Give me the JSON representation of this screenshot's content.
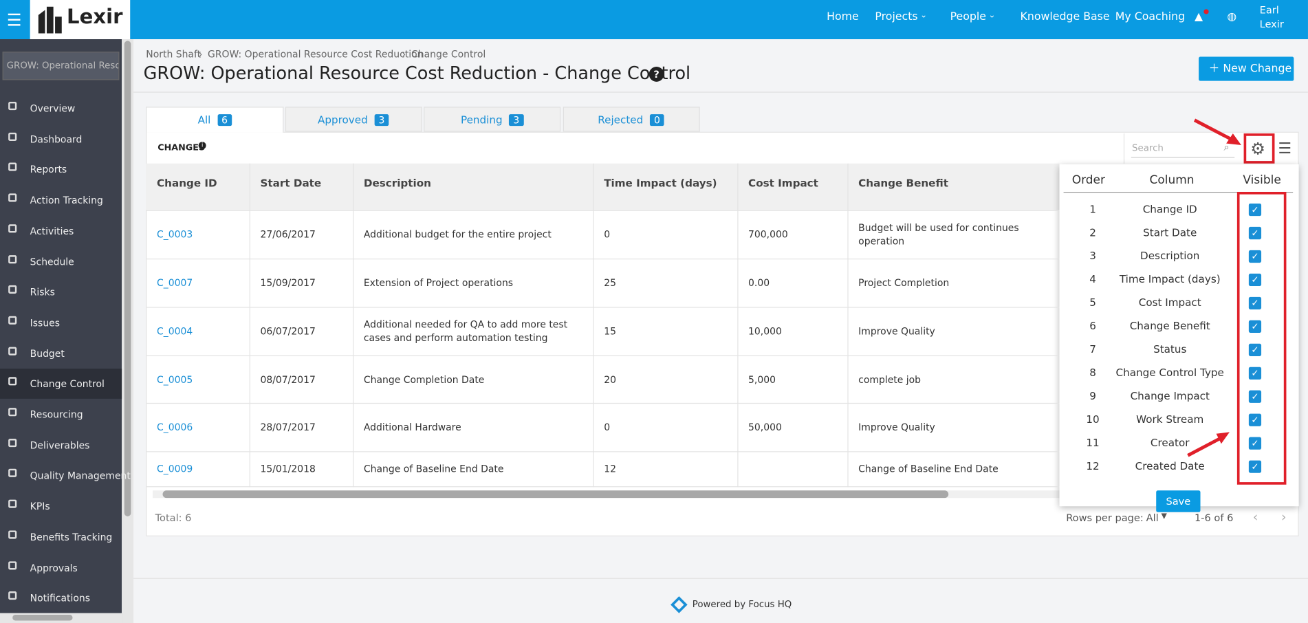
{
  "nav": {
    "brand": "Lexir",
    "links": [
      "Home",
      "Projects",
      "People",
      "Knowledge Base",
      "My Coaching"
    ],
    "user": [
      "Earl",
      "Lexir"
    ]
  },
  "sidebar": {
    "search": "GROW: Operational Resource Cost Reduction",
    "items": [
      "Overview",
      "Dashboard",
      "Reports",
      "Action Tracking",
      "Activities",
      "Schedule",
      "Risks",
      "Issues",
      "Budget",
      "Change Control",
      "Resourcing",
      "Deliverables",
      "Quality Management",
      "KPIs",
      "Benefits Tracking",
      "Approvals",
      "Notifications"
    ]
  },
  "breadcrumbs": [
    "North Shaft",
    "GROW: Operational Resource Cost Reduction",
    "Change Control"
  ],
  "title": "GROW: Operational Resource Cost Reduction - Change Control",
  "new_change": "New Change",
  "tabs": [
    {
      "label": "All",
      "count": 6
    },
    {
      "label": "Approved",
      "count": 3
    },
    {
      "label": "Pending",
      "count": 3
    },
    {
      "label": "Rejected",
      "count": 0
    }
  ],
  "table": {
    "caption": "CHANGES",
    "search_placeholder": "Search",
    "columns": [
      "Change ID",
      "Start Date",
      "Description",
      "Time Impact (days)",
      "Cost Impact",
      "Change Benefit"
    ],
    "rows": [
      [
        "C_0003",
        "27/06/2017",
        "Additional budget for the entire project",
        "0",
        "700,000",
        "Budget will be used for continues operation"
      ],
      [
        "C_0007",
        "15/09/2017",
        "Extension of Project operations",
        "25",
        "0.00",
        "Project Completion"
      ],
      [
        "C_0004",
        "06/07/2017",
        "Additional needed for QA to add more test cases and perform automation testing",
        "15",
        "10,000",
        "Improve Quality"
      ],
      [
        "C_0005",
        "08/07/2017",
        "Change Completion Date",
        "20",
        "5,000",
        "complete job"
      ],
      [
        "C_0006",
        "28/07/2017",
        "Additional Hardware",
        "0",
        "50,000",
        "Improve Quality"
      ],
      [
        "C_0009",
        "15/01/2018",
        "Change of Baseline End Date",
        "12",
        null,
        "Change of Baseline End Date"
      ]
    ],
    "total": "Total: 6",
    "rows_per_page_label": "Rows per page:",
    "rows_per_page": "All",
    "range": "1-6 of 6"
  },
  "column_panel": {
    "headers": [
      "Order",
      "Column",
      "Visible"
    ],
    "rows": [
      {
        "order": 1,
        "column": "Change ID",
        "visible": true
      },
      {
        "order": 2,
        "column": "Start Date",
        "visible": true
      },
      {
        "order": 3,
        "column": "Description",
        "visible": true
      },
      {
        "order": 4,
        "column": "Time Impact (days)",
        "visible": true
      },
      {
        "order": 5,
        "column": "Cost Impact",
        "visible": true
      },
      {
        "order": 6,
        "column": "Change Benefit",
        "visible": true
      },
      {
        "order": 7,
        "column": "Status",
        "visible": true
      },
      {
        "order": 8,
        "column": "Change Control Type",
        "visible": true
      },
      {
        "order": 9,
        "column": "Change Impact",
        "visible": true
      },
      {
        "order": 10,
        "column": "Work Stream",
        "visible": true
      },
      {
        "order": 11,
        "column": "Creator",
        "visible": true
      },
      {
        "order": 12,
        "column": "Created Date",
        "visible": true
      }
    ],
    "save": "Save"
  },
  "footer": "Powered by Focus HQ"
}
